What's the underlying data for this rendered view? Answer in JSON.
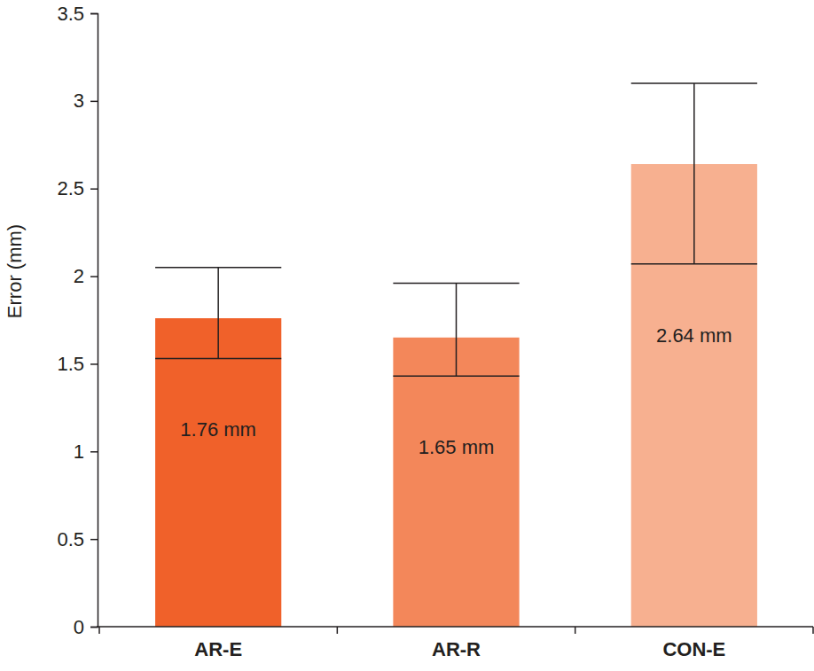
{
  "chart_data": {
    "type": "bar",
    "y_label": "Error (mm)",
    "categories": [
      "AR-E",
      "AR-R",
      "CON-E"
    ],
    "values": [
      1.76,
      1.65,
      2.64
    ],
    "value_labels": [
      "1.76 mm",
      "1.65 mm",
      "2.64 mm"
    ],
    "error_low": [
      1.53,
      1.43,
      2.07
    ],
    "error_high": [
      2.05,
      1.96,
      3.1
    ],
    "colors": [
      "#f0612a",
      "#f3875a",
      "#f7b090"
    ],
    "data_labels": true,
    "grid": false,
    "ylim": [
      0,
      3.5
    ],
    "yticks": [
      0,
      0.5,
      1,
      1.5,
      2,
      2.5,
      3,
      3.5
    ]
  }
}
